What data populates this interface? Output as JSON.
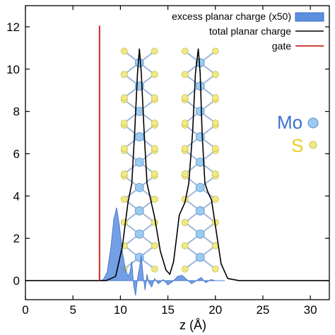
{
  "chart_data": {
    "type": "line",
    "xlabel": "z (Å)",
    "ylabel": "",
    "xlim": [
      0,
      32
    ],
    "ylim": [
      -0.9,
      13.0
    ],
    "xticks": [
      0,
      5,
      10,
      15,
      20,
      25,
      30
    ],
    "yticks": [
      0,
      2,
      4,
      6,
      8,
      10,
      12
    ],
    "grid": false,
    "legend_position": "top-right",
    "legend": [
      {
        "label": "excess planar charge (x50)",
        "style": "fill",
        "color": "#5b8fe0"
      },
      {
        "label": "total planar charge",
        "style": "line",
        "color": "#000000"
      },
      {
        "label": "gate",
        "style": "line",
        "color": "#c0281e"
      }
    ],
    "series": [
      {
        "name": "excess planar charge (x50)",
        "kind": "filled-area",
        "color": "#5b8fe0",
        "x": [
          7.8,
          8.2,
          8.6,
          9.0,
          9.3,
          9.6,
          9.9,
          10.2,
          10.5,
          10.8,
          11.0,
          11.2,
          11.4,
          11.6,
          11.8,
          12.0,
          12.2,
          12.4,
          12.6,
          12.8,
          13.0,
          13.3,
          13.6,
          14.0,
          14.5,
          15.0,
          15.5,
          16.0,
          16.5,
          17.0,
          17.5,
          18.0,
          18.5,
          19.0,
          19.5,
          20.0,
          21.0
        ],
        "y": [
          0,
          0.05,
          0.4,
          1.6,
          2.9,
          3.45,
          2.6,
          1.4,
          0.6,
          0.2,
          0.4,
          0.9,
          -0.25,
          -0.7,
          0.1,
          0.6,
          1.2,
          0.2,
          -0.45,
          0.3,
          -0.1,
          -0.3,
          0.1,
          -0.15,
          0.05,
          -0.2,
          -0.05,
          0.2,
          0.25,
          0.05,
          -0.15,
          0.0,
          0.15,
          -0.1,
          0.05,
          0.0,
          0
        ]
      },
      {
        "name": "total planar charge",
        "kind": "line",
        "color": "#000000",
        "x": [
          0,
          7.5,
          8.5,
          9.5,
          10.2,
          10.8,
          11.2,
          11.5,
          11.8,
          12.0,
          12.2,
          12.5,
          12.8,
          13.2,
          13.6,
          14.2,
          14.8,
          15.2,
          15.6,
          16.2,
          16.8,
          17.2,
          17.6,
          17.9,
          18.2,
          18.4,
          18.6,
          18.9,
          19.2,
          19.6,
          20.0,
          20.6,
          21.3,
          22.5,
          32
        ],
        "y": [
          0,
          0,
          0,
          0.2,
          1.6,
          3.7,
          4.6,
          7.0,
          9.8,
          10.95,
          9.8,
          7.0,
          4.6,
          3.8,
          3.0,
          1.4,
          0.5,
          0.3,
          0.9,
          3.1,
          3.7,
          4.6,
          7.0,
          9.8,
          10.95,
          9.8,
          7.0,
          4.6,
          4.2,
          3.8,
          2.6,
          0.8,
          0.1,
          0,
          0
        ]
      },
      {
        "name": "gate",
        "kind": "vertical-line",
        "color": "#c0281e",
        "x": [
          7.8,
          7.8
        ],
        "y": [
          0,
          12.05
        ]
      }
    ],
    "annotations": [
      {
        "label": "Mo",
        "color": "#3a72cf",
        "marker_color": "#9ccbf0"
      },
      {
        "label": "S",
        "color": "#e8cf1e",
        "marker_color": "#f0ea80"
      }
    ],
    "structure": {
      "description_free": true,
      "layers": [
        {
          "z_center": 12.0,
          "mo_y": [
            1.1,
            2.2,
            3.3,
            4.4,
            5.6,
            6.8,
            8.0,
            9.2,
            10.3
          ],
          "s_dz": 1.6
        },
        {
          "z_center": 18.4,
          "mo_y": [
            1.1,
            2.2,
            3.3,
            4.4,
            5.6,
            6.8,
            8.0,
            9.2,
            10.3
          ],
          "s_dz": 1.6
        }
      ],
      "mo_color": "#9ccbf0",
      "s_color": "#f0ea80",
      "bond_color": "#9fb8d8"
    }
  }
}
